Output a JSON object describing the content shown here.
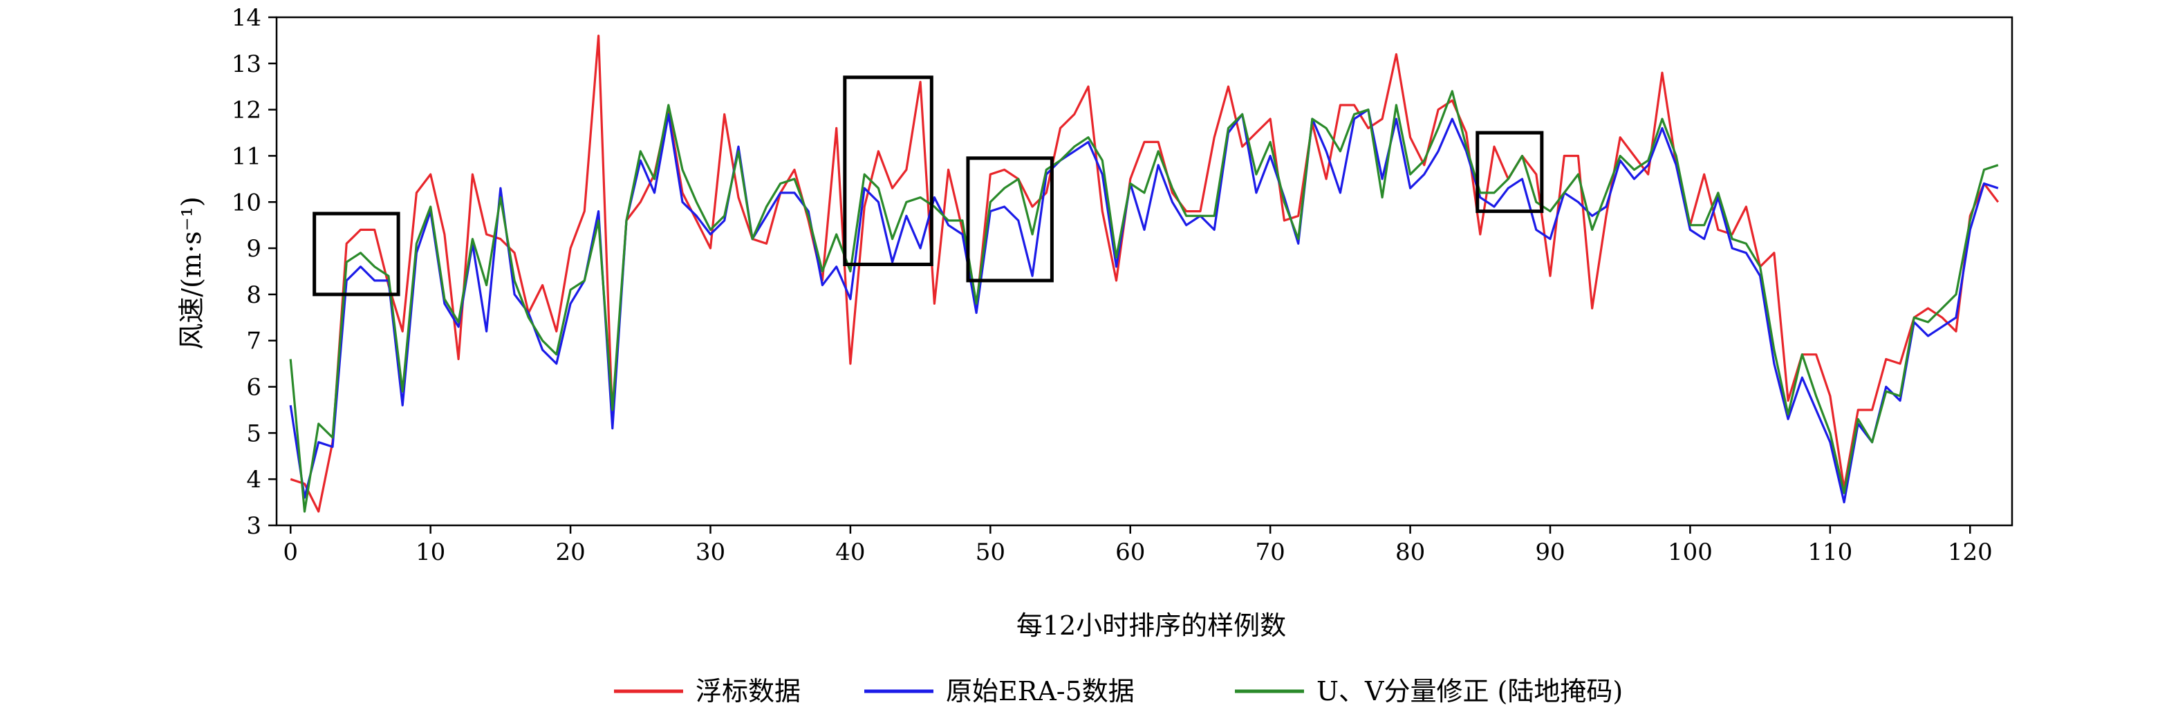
{
  "chart_data": {
    "type": "line",
    "xlabel": "每12小时排序的样例数",
    "ylabel": "风速/(m·s⁻¹)",
    "xlim": [
      -1,
      123
    ],
    "ylim": [
      3,
      14
    ],
    "x_ticks": [
      0,
      10,
      20,
      30,
      40,
      50,
      60,
      70,
      80,
      90,
      100,
      110,
      120
    ],
    "y_ticks": [
      3,
      4,
      5,
      6,
      7,
      8,
      9,
      10,
      11,
      12,
      13,
      14
    ],
    "grid": false,
    "legend_position": "bottom",
    "x": [
      0,
      1,
      2,
      3,
      4,
      5,
      6,
      7,
      8,
      9,
      10,
      11,
      12,
      13,
      14,
      15,
      16,
      17,
      18,
      19,
      20,
      21,
      22,
      23,
      24,
      25,
      26,
      27,
      28,
      29,
      30,
      31,
      32,
      33,
      34,
      35,
      36,
      37,
      38,
      39,
      40,
      41,
      42,
      43,
      44,
      45,
      46,
      47,
      48,
      49,
      50,
      51,
      52,
      53,
      54,
      55,
      56,
      57,
      58,
      59,
      60,
      61,
      62,
      63,
      64,
      65,
      66,
      67,
      68,
      69,
      70,
      71,
      72,
      73,
      74,
      75,
      76,
      77,
      78,
      79,
      80,
      81,
      82,
      83,
      84,
      85,
      86,
      87,
      88,
      89,
      90,
      91,
      92,
      93,
      94,
      95,
      96,
      97,
      98,
      99,
      100,
      101,
      102,
      103,
      104,
      105,
      106,
      107,
      108,
      109,
      110,
      111,
      112,
      113,
      114,
      115,
      116,
      117,
      118,
      119,
      120,
      121,
      122
    ],
    "series": [
      {
        "name": "浮标数据",
        "color": "#e8262b",
        "values": [
          4.0,
          3.9,
          3.3,
          4.8,
          9.1,
          9.4,
          9.4,
          8.2,
          7.2,
          10.2,
          10.6,
          9.3,
          6.6,
          10.6,
          9.3,
          9.2,
          8.9,
          7.6,
          8.2,
          7.2,
          9.0,
          9.8,
          13.6,
          5.3,
          9.6,
          10.0,
          10.6,
          12.0,
          10.2,
          9.6,
          9.0,
          11.9,
          10.1,
          9.2,
          9.1,
          10.2,
          10.7,
          9.6,
          8.3,
          11.6,
          6.5,
          9.9,
          11.1,
          10.3,
          10.7,
          12.6,
          7.8,
          10.7,
          9.4,
          7.7,
          10.6,
          10.7,
          10.5,
          9.9,
          10.2,
          11.6,
          11.9,
          12.5,
          9.8,
          8.3,
          10.5,
          11.3,
          11.3,
          10.2,
          9.8,
          9.8,
          11.4,
          12.5,
          11.2,
          11.5,
          11.8,
          9.6,
          9.7,
          11.7,
          10.5,
          12.1,
          12.1,
          11.6,
          11.8,
          13.2,
          11.4,
          10.8,
          12.0,
          12.2,
          11.5,
          9.3,
          11.2,
          10.5,
          11.0,
          10.6,
          8.4,
          11.0,
          11.0,
          7.7,
          9.7,
          11.4,
          11.0,
          10.6,
          12.8,
          10.8,
          9.5,
          10.6,
          9.4,
          9.3,
          9.9,
          8.6,
          8.9,
          5.7,
          6.7,
          6.7,
          5.8,
          3.8,
          5.5,
          5.5,
          6.6,
          6.5,
          7.5,
          7.7,
          7.5,
          7.2,
          9.7,
          10.4,
          10.0
        ]
      },
      {
        "name": "原始ERA-5数据",
        "color": "#1b1be8",
        "values": [
          5.6,
          3.6,
          4.8,
          4.7,
          8.3,
          8.6,
          8.3,
          8.3,
          5.6,
          8.9,
          9.8,
          7.8,
          7.3,
          9.1,
          7.2,
          10.3,
          8.0,
          7.6,
          6.8,
          6.5,
          7.8,
          8.3,
          9.8,
          5.1,
          9.6,
          10.9,
          10.2,
          11.9,
          10.0,
          9.7,
          9.3,
          9.6,
          11.2,
          9.2,
          9.7,
          10.2,
          10.2,
          9.8,
          8.2,
          8.6,
          7.9,
          10.3,
          10.0,
          8.7,
          9.7,
          9.0,
          10.1,
          9.5,
          9.3,
          7.6,
          9.8,
          9.9,
          9.6,
          8.4,
          10.6,
          10.9,
          11.1,
          11.3,
          10.6,
          8.6,
          10.4,
          9.4,
          10.8,
          10.0,
          9.5,
          9.7,
          9.4,
          11.5,
          11.9,
          10.2,
          11.0,
          10.1,
          9.1,
          11.8,
          11.1,
          10.2,
          11.8,
          12.0,
          10.5,
          11.8,
          10.3,
          10.6,
          11.1,
          11.8,
          11.1,
          10.1,
          9.9,
          10.3,
          10.5,
          9.4,
          9.2,
          10.2,
          10.0,
          9.7,
          9.9,
          10.9,
          10.5,
          10.8,
          11.6,
          10.8,
          9.4,
          9.2,
          10.1,
          9.0,
          8.9,
          8.4,
          6.5,
          5.3,
          6.2,
          5.5,
          4.8,
          3.5,
          5.2,
          4.8,
          6.0,
          5.7,
          7.4,
          7.1,
          7.3,
          7.5,
          9.4,
          10.4,
          10.3
        ]
      },
      {
        "name": "U、V分量修正 (陆地掩码)",
        "color": "#2a8a2a",
        "values": [
          6.6,
          3.3,
          5.2,
          4.9,
          8.7,
          8.9,
          8.6,
          8.4,
          5.9,
          9.1,
          9.9,
          7.9,
          7.4,
          9.2,
          8.2,
          10.1,
          8.3,
          7.5,
          7.0,
          6.7,
          8.1,
          8.3,
          9.6,
          5.5,
          9.6,
          11.1,
          10.5,
          12.1,
          10.7,
          10.0,
          9.4,
          9.7,
          11.1,
          9.2,
          9.9,
          10.4,
          10.5,
          9.7,
          8.5,
          9.3,
          8.5,
          10.6,
          10.3,
          9.2,
          10.0,
          10.1,
          9.9,
          9.6,
          9.6,
          7.8,
          10.0,
          10.3,
          10.5,
          9.3,
          10.7,
          10.9,
          11.2,
          11.4,
          10.9,
          8.8,
          10.4,
          10.2,
          11.1,
          10.3,
          9.7,
          9.7,
          9.7,
          11.6,
          11.9,
          10.6,
          11.3,
          10.0,
          9.2,
          11.8,
          11.6,
          11.1,
          11.9,
          12.0,
          10.1,
          12.1,
          10.6,
          10.9,
          11.6,
          12.4,
          11.2,
          10.2,
          10.2,
          10.5,
          11.0,
          10.0,
          9.8,
          10.2,
          10.6,
          9.4,
          10.2,
          11.0,
          10.7,
          10.9,
          11.8,
          11.0,
          9.5,
          9.5,
          10.2,
          9.2,
          9.1,
          8.6,
          6.8,
          5.4,
          6.7,
          5.8,
          5.0,
          3.7,
          5.3,
          4.8,
          5.9,
          5.8,
          7.5,
          7.4,
          7.7,
          8.0,
          9.6,
          10.7,
          10.8
        ]
      }
    ],
    "annotations": [
      {
        "type": "box",
        "x_range": [
          1.7,
          7.7
        ],
        "y_range": [
          8.0,
          9.75
        ]
      },
      {
        "type": "box",
        "x_range": [
          39.6,
          45.8
        ],
        "y_range": [
          8.65,
          12.7
        ]
      },
      {
        "type": "box",
        "x_range": [
          48.4,
          54.4
        ],
        "y_range": [
          8.3,
          10.95
        ]
      },
      {
        "type": "box",
        "x_range": [
          84.8,
          89.4
        ],
        "y_range": [
          9.8,
          11.5
        ]
      }
    ]
  }
}
